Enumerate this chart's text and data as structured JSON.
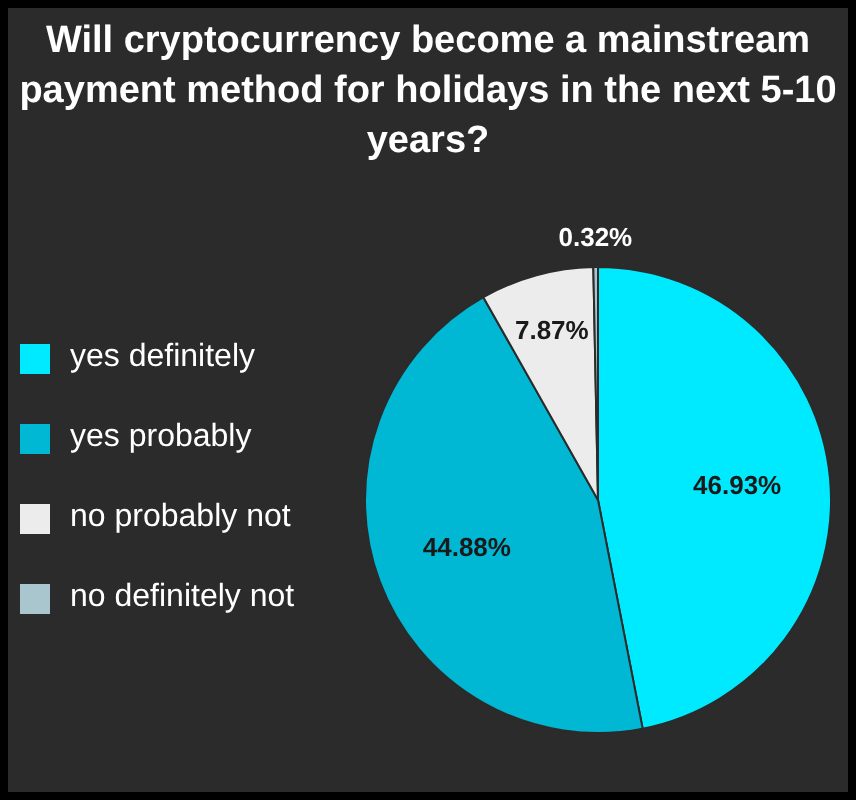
{
  "chart_data": {
    "type": "pie",
    "title": "Will cryptocurrency become a mainstream payment method for holidays in the next 5-10 years?",
    "categories": [
      "yes definitely",
      "yes probably",
      "no probably not",
      "no definitely not"
    ],
    "values": [
      46.93,
      44.88,
      7.87,
      0.32
    ],
    "value_labels": [
      "46.93%",
      "44.88%",
      "7.87%",
      "0.32%"
    ],
    "colors": [
      "#00eaff",
      "#00b8d4",
      "#ececec",
      "#a9c6cf"
    ],
    "legend": "left"
  }
}
